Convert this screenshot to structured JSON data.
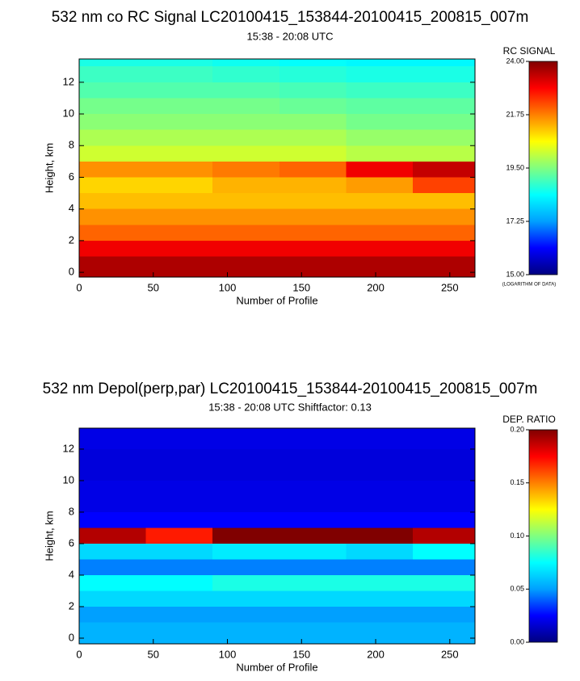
{
  "chart_data": [
    {
      "type": "heatmap",
      "title": "532 nm co RC Signal LC20100415_153844-20100415_200815_007m",
      "subtitle": "15:38 - 20:08 UTC",
      "x_label": "Number of Profile",
      "y_label": "Height, km",
      "xlim": [
        0,
        267
      ],
      "xticks": [
        0,
        50,
        100,
        150,
        200,
        250
      ],
      "ylim": [
        -0.3,
        13.47
      ],
      "yticks": [
        0,
        2,
        4,
        6,
        8,
        10,
        12
      ],
      "x_bins": [
        0,
        45,
        90,
        135,
        180,
        225,
        267
      ],
      "y_bins": [
        -0.3,
        1,
        2,
        3,
        4,
        5,
        6,
        7,
        8,
        9,
        10,
        11,
        12,
        13,
        13.47
      ],
      "values": [
        [
          23.6,
          23.6,
          23.6,
          23.6,
          23.6,
          23.6
        ],
        [
          23.0,
          23.0,
          23.0,
          23.0,
          23.0,
          23.0
        ],
        [
          22.0,
          22.0,
          22.0,
          22.0,
          22.0,
          22.0
        ],
        [
          21.6,
          21.6,
          21.6,
          21.6,
          21.6,
          21.6
        ],
        [
          21.2,
          21.2,
          21.2,
          21.2,
          21.2,
          21.2
        ],
        [
          21.0,
          21.0,
          21.3,
          21.3,
          21.5,
          22.3
        ],
        [
          21.6,
          21.6,
          21.8,
          22.0,
          23.0,
          23.4
        ],
        [
          20.2,
          20.2,
          20.2,
          20.2,
          20.0,
          20.0
        ],
        [
          19.9,
          19.9,
          19.9,
          19.9,
          19.7,
          19.7
        ],
        [
          19.6,
          19.6,
          19.6,
          19.6,
          19.4,
          19.4
        ],
        [
          19.4,
          19.4,
          19.4,
          19.3,
          19.2,
          19.2
        ],
        [
          19.1,
          19.1,
          19.1,
          19.0,
          18.9,
          18.9
        ],
        [
          18.9,
          18.9,
          18.8,
          18.7,
          18.6,
          18.6
        ],
        [
          18.6,
          18.6,
          18.5,
          18.4,
          18.3,
          18.3
        ]
      ],
      "zlim": [
        15,
        24
      ],
      "zticks": [
        {
          "value": 15,
          "label": "15.00"
        },
        {
          "value": 17.25,
          "label": "17.25"
        },
        {
          "value": 19.5,
          "label": "19.50"
        },
        {
          "value": 21.75,
          "label": "21.75"
        },
        {
          "value": 24,
          "label": "24.00"
        }
      ],
      "colorbar_label": "RC SIGNAL",
      "colorbar_note": "(LOGARITHM OF DATA)",
      "colorscale": [
        "#000080",
        "#0000ff",
        "#00a0ff",
        "#00ffff",
        "#80ff80",
        "#ffff00",
        "#ff8000",
        "#ff0000",
        "#800000"
      ]
    },
    {
      "type": "heatmap",
      "title": "532 nm Depol(perp,par) LC20100415_153844-20100415_200815_007m",
      "subtitle": "15:38 - 20:08 UTC Shiftfactor: 0.13",
      "x_label": "Number of Profile",
      "y_label": "Height, km",
      "xlim": [
        0,
        267
      ],
      "xticks": [
        0,
        50,
        100,
        150,
        200,
        250
      ],
      "ylim": [
        -0.36,
        13.33
      ],
      "yticks": [
        0,
        2,
        4,
        6,
        8,
        10,
        12
      ],
      "x_bins": [
        0,
        45,
        90,
        135,
        180,
        225,
        267
      ],
      "y_bins": [
        -0.36,
        1,
        2,
        3,
        4,
        5,
        6,
        7,
        8,
        9,
        10,
        11,
        12,
        13,
        13.33
      ],
      "values": [
        [
          0.055,
          0.055,
          0.055,
          0.055,
          0.055,
          0.055
        ],
        [
          0.05,
          0.05,
          0.05,
          0.05,
          0.05,
          0.05
        ],
        [
          0.065,
          0.065,
          0.065,
          0.065,
          0.065,
          0.065
        ],
        [
          0.075,
          0.075,
          0.08,
          0.08,
          0.08,
          0.08
        ],
        [
          0.045,
          0.045,
          0.045,
          0.045,
          0.045,
          0.045
        ],
        [
          0.065,
          0.065,
          0.07,
          0.07,
          0.065,
          0.075
        ],
        [
          0.19,
          0.17,
          0.2,
          0.2,
          0.2,
          0.19
        ],
        [
          0.025,
          0.025,
          0.025,
          0.025,
          0.025,
          0.025
        ],
        [
          0.02,
          0.02,
          0.02,
          0.02,
          0.02,
          0.02
        ],
        [
          0.02,
          0.02,
          0.02,
          0.02,
          0.02,
          0.02
        ],
        [
          0.018,
          0.018,
          0.018,
          0.018,
          0.018,
          0.018
        ],
        [
          0.018,
          0.018,
          0.018,
          0.018,
          0.018,
          0.018
        ],
        [
          0.02,
          0.02,
          0.02,
          0.02,
          0.02,
          0.02
        ],
        [
          0.02,
          0.02,
          0.02,
          0.02,
          0.02,
          0.02
        ]
      ],
      "zlim": [
        0,
        0.2
      ],
      "zticks": [
        {
          "value": 0,
          "label": "0.00"
        },
        {
          "value": 0.05,
          "label": "0.05"
        },
        {
          "value": 0.1,
          "label": "0.10"
        },
        {
          "value": 0.15,
          "label": "0.15"
        },
        {
          "value": 0.2,
          "label": "0.20"
        }
      ],
      "colorbar_label": "DEP. RATIO",
      "colorscale": [
        "#000080",
        "#0000ff",
        "#00a0ff",
        "#00ffff",
        "#80ff80",
        "#ffff00",
        "#ff8000",
        "#ff0000",
        "#800000"
      ]
    }
  ]
}
